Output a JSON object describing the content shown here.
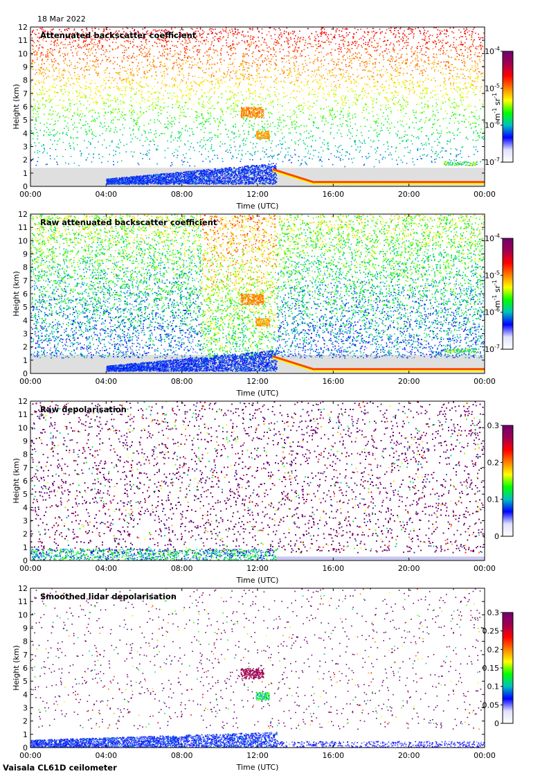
{
  "date": "18 Mar 2022",
  "instrument": "Vaisala CL61D ceilometer",
  "colors": {
    "cmap": [
      "#ffffff",
      "#e0e0ff",
      "#0000ff",
      "#00c0c0",
      "#00ff00",
      "#ffff00",
      "#ff8000",
      "#ff0000",
      "#a00050",
      "#700070"
    ],
    "background_fill": "#dcdcdc"
  },
  "chart_data": [
    {
      "type": "heatmap",
      "title": "Attenuated backscatter coefficient",
      "xlabel": "Time (UTC)",
      "ylabel": "Height (km)",
      "x_ticks": [
        "00:00",
        "04:00",
        "08:00",
        "12:00",
        "16:00",
        "20:00",
        "00:00"
      ],
      "y_ticks": [
        "0",
        "1",
        "2",
        "3",
        "4",
        "5",
        "6",
        "7",
        "8",
        "9",
        "10",
        "11",
        "12"
      ],
      "ylim": [
        0,
        12
      ],
      "colorbar": {
        "scale": "log",
        "range": [
          1e-07,
          0.0001
        ],
        "ticks": [
          {
            "base": "10",
            "exp": "-4"
          },
          {
            "base": "10",
            "exp": "-5"
          },
          {
            "base": "10",
            "exp": "-6"
          },
          {
            "base": "10",
            "exp": "-7"
          }
        ],
        "units": {
          "a": "m",
          "a_exp": "-1",
          "b": "sr",
          "b_exp": "-1"
        }
      },
      "features": [
        "low aerosol layer 0-1.7 km until 13:00",
        "cloud ~5.5 km and ~4 km near 11:30",
        "boundary layer cloud after 13:00 near 0.2-0.5 km"
      ]
    },
    {
      "type": "heatmap",
      "title": "Raw attenuated backscatter coefficient",
      "xlabel": "Time (UTC)",
      "ylabel": "Height (km)",
      "x_ticks": [
        "00:00",
        "04:00",
        "08:00",
        "12:00",
        "16:00",
        "20:00",
        "00:00"
      ],
      "y_ticks": [
        "0",
        "1",
        "2",
        "3",
        "4",
        "5",
        "6",
        "7",
        "8",
        "9",
        "10",
        "11",
        "12"
      ],
      "ylim": [
        0,
        12
      ],
      "colorbar": {
        "scale": "log",
        "range": [
          1e-07,
          0.0001
        ],
        "ticks": [
          {
            "base": "10",
            "exp": "-4"
          },
          {
            "base": "10",
            "exp": "-5"
          },
          {
            "base": "10",
            "exp": "-6"
          },
          {
            "base": "10",
            "exp": "-7"
          }
        ],
        "units": {
          "a": "m",
          "a_exp": "-1",
          "b": "sr",
          "b_exp": "-1"
        }
      }
    },
    {
      "type": "heatmap",
      "title": "Raw depolarisation",
      "xlabel": "Time (UTC)",
      "ylabel": "Height (km)",
      "x_ticks": [
        "00:00",
        "04:00",
        "08:00",
        "12:00",
        "16:00",
        "20:00",
        "00:00"
      ],
      "y_ticks": [
        "0",
        "1",
        "2",
        "3",
        "4",
        "5",
        "6",
        "7",
        "8",
        "9",
        "10",
        "11",
        "12"
      ],
      "ylim": [
        0,
        12
      ],
      "colorbar": {
        "scale": "linear",
        "range": [
          0,
          0.3
        ],
        "ticks": [
          "0.3",
          "0.2",
          "0.1",
          "0"
        ]
      }
    },
    {
      "type": "heatmap",
      "title": "Smoothed lidar depolarisation",
      "xlabel": "Time (UTC)",
      "ylabel": "Height (km)",
      "x_ticks": [
        "00:00",
        "04:00",
        "08:00",
        "12:00",
        "16:00",
        "20:00",
        "00:00"
      ],
      "y_ticks": [
        "0",
        "1",
        "2",
        "3",
        "4",
        "5",
        "6",
        "7",
        "8",
        "9",
        "10",
        "11",
        "12"
      ],
      "ylim": [
        0,
        12
      ],
      "colorbar": {
        "scale": "linear",
        "range": [
          0,
          0.3
        ],
        "ticks": [
          "0.3",
          "0.25",
          "0.2",
          "0.15",
          "0.1",
          "0.05",
          "0"
        ]
      }
    }
  ]
}
